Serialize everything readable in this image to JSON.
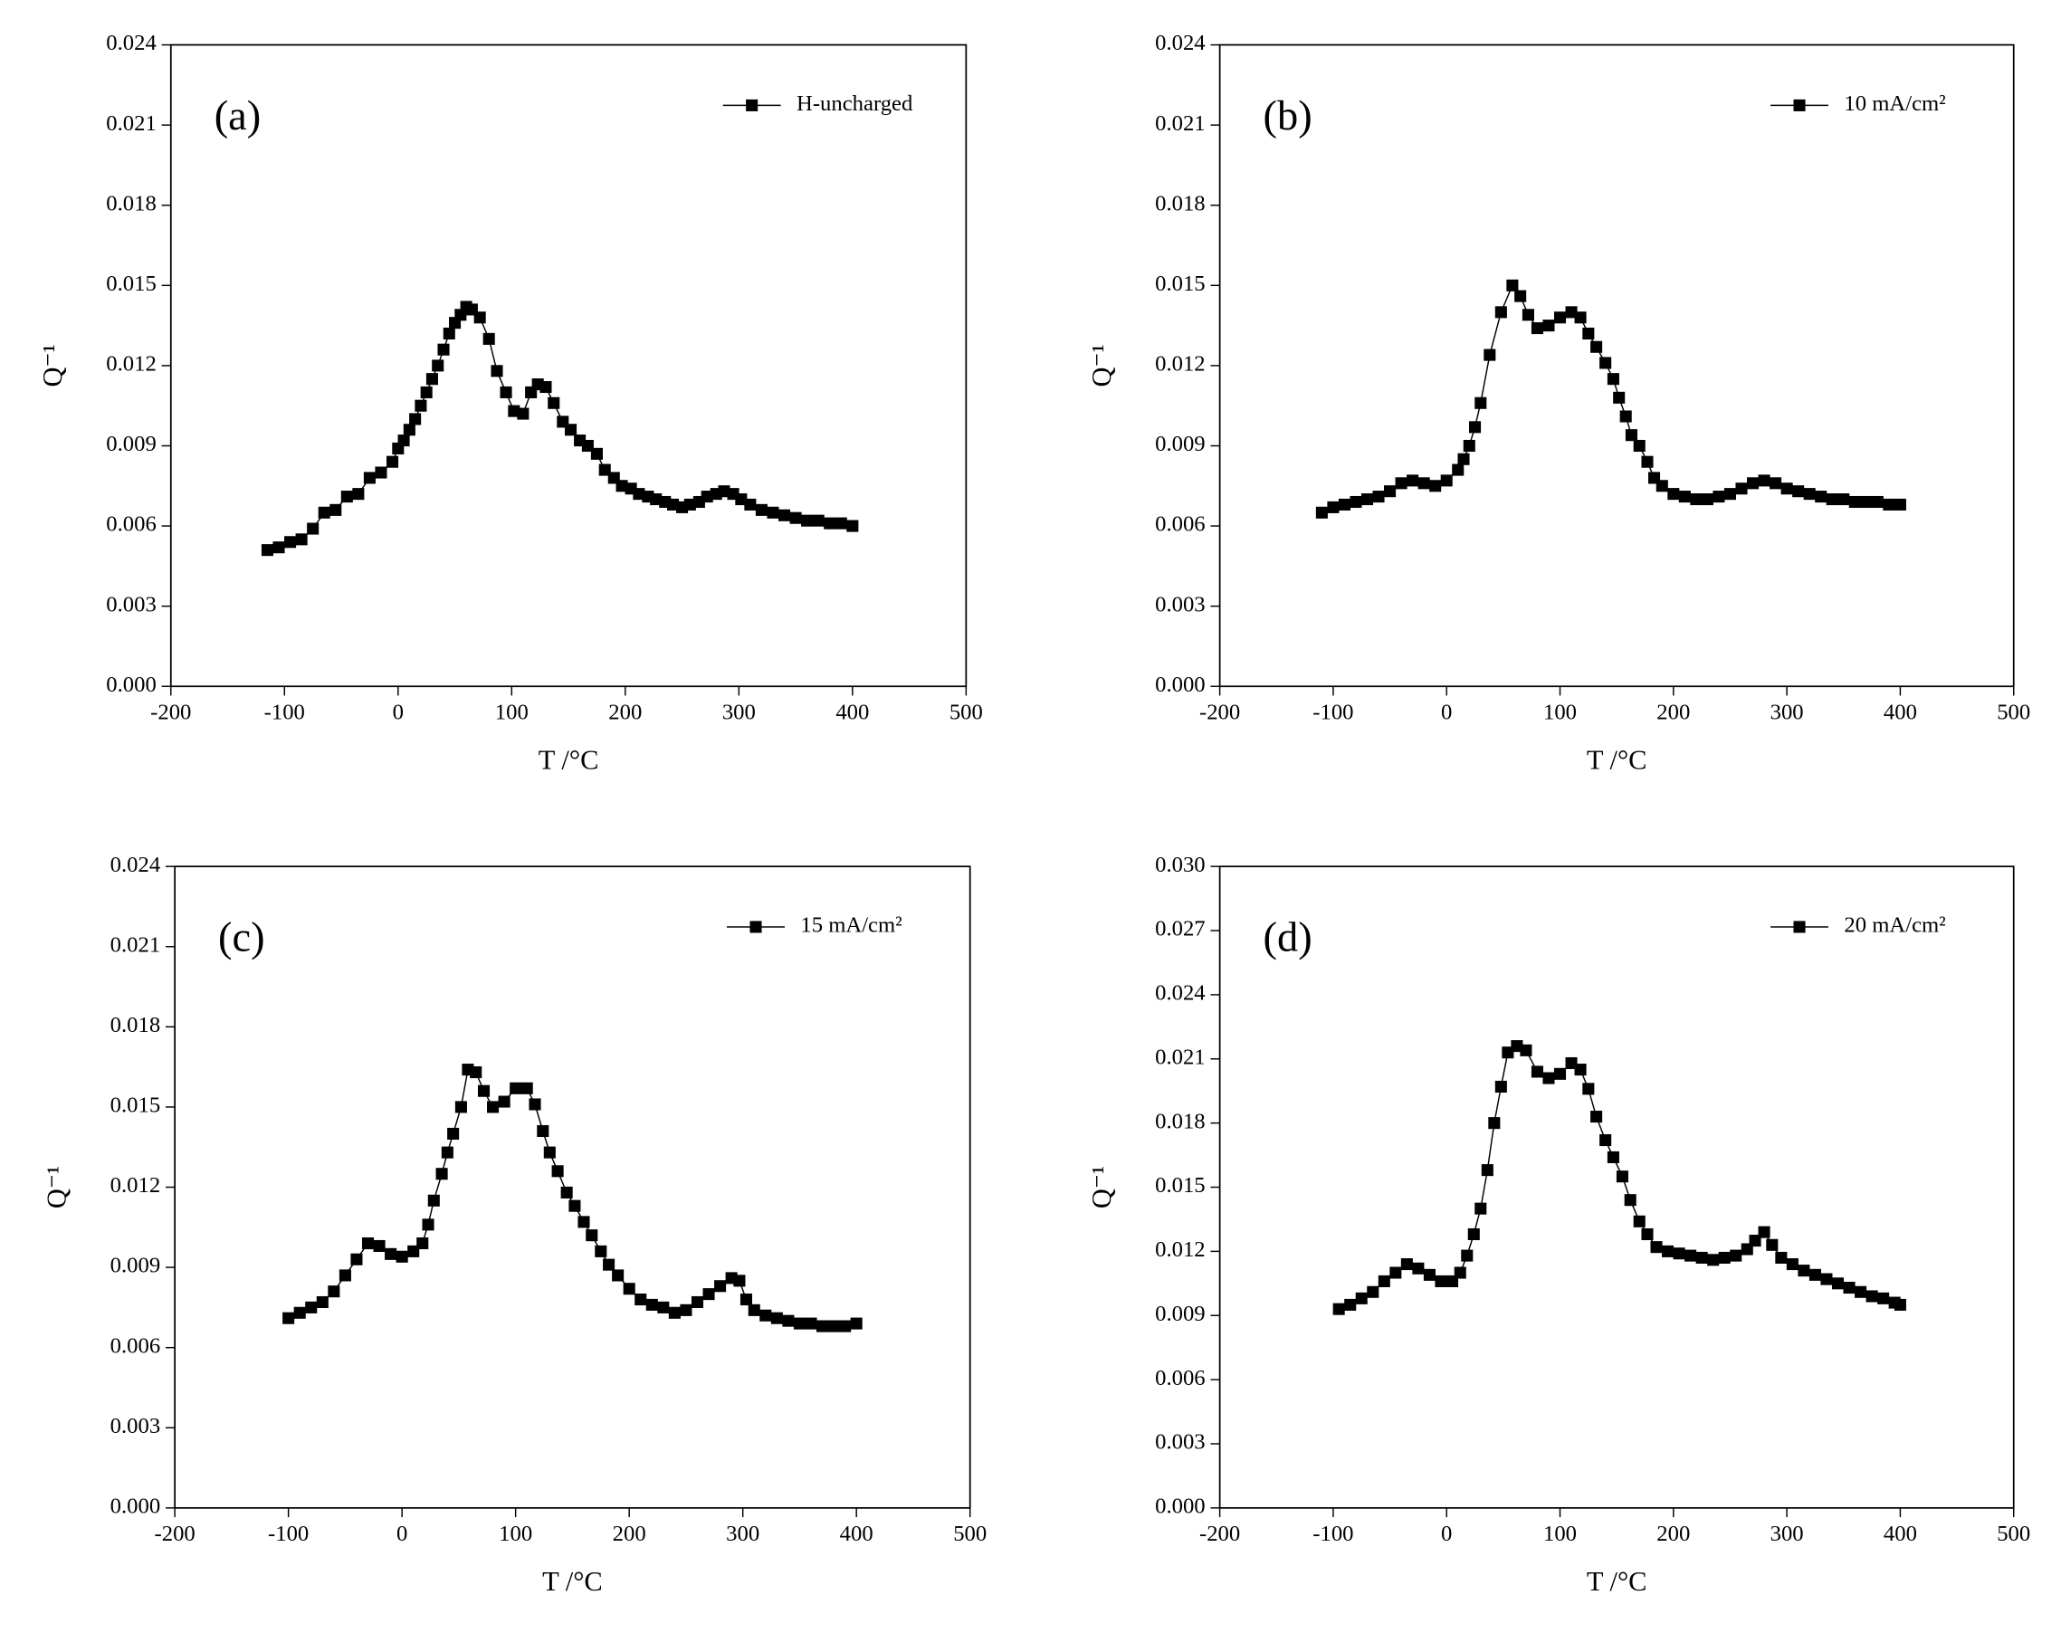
{
  "chart_data": [
    {
      "type": "line",
      "panel_label": "(a)",
      "xlabel": "T /°C",
      "ylabel": "Q⁻¹",
      "xlim": [
        -200,
        500
      ],
      "ylim": [
        0,
        0.024
      ],
      "xticks": [
        -200,
        -100,
        0,
        100,
        200,
        300,
        400,
        500
      ],
      "yticks": [
        {
          "value": 0,
          "label": "0.000"
        },
        {
          "value": 0.003,
          "label": "0.003"
        },
        {
          "value": 0.006,
          "label": "0.006"
        },
        {
          "value": 0.009,
          "label": "0.009"
        },
        {
          "value": 0.012,
          "label": "0.012"
        },
        {
          "value": 0.015,
          "label": "0.015"
        },
        {
          "value": 0.018,
          "label": "0.018"
        },
        {
          "value": 0.021,
          "label": "0.021"
        },
        {
          "value": 0.024,
          "label": "0.024"
        }
      ],
      "marker": "square",
      "legend": "upper right",
      "x": [
        -115,
        -105,
        -95,
        -85,
        -75,
        -65,
        -55,
        -45,
        -35,
        -25,
        -15,
        -5,
        0,
        5,
        10,
        15,
        20,
        25,
        30,
        35,
        40,
        45,
        50,
        55,
        60,
        65,
        72,
        80,
        87,
        95,
        102,
        110,
        117,
        123,
        130,
        137,
        145,
        152,
        160,
        167,
        175,
        182,
        190,
        197,
        205,
        212,
        220,
        227,
        235,
        242,
        250,
        257,
        265,
        272,
        280,
        287,
        295,
        302,
        310,
        320,
        330,
        340,
        350,
        360,
        370,
        380,
        390,
        400
      ],
      "series": [
        {
          "name": "H-uncharged",
          "color": "#000000",
          "values": [
            0.0051,
            0.0052,
            0.0054,
            0.0055,
            0.0059,
            0.0065,
            0.0066,
            0.0071,
            0.0072,
            0.0078,
            0.008,
            0.0084,
            0.0089,
            0.0092,
            0.0096,
            0.01,
            0.0105,
            0.011,
            0.0115,
            0.012,
            0.0126,
            0.0132,
            0.0136,
            0.0139,
            0.0142,
            0.0141,
            0.0138,
            0.013,
            0.0118,
            0.011,
            0.0103,
            0.0102,
            0.011,
            0.0113,
            0.0112,
            0.0106,
            0.0099,
            0.0096,
            0.0092,
            0.009,
            0.0087,
            0.0081,
            0.0078,
            0.0075,
            0.0074,
            0.0072,
            0.0071,
            0.007,
            0.0069,
            0.0068,
            0.0067,
            0.0068,
            0.0069,
            0.0071,
            0.0072,
            0.0073,
            0.0072,
            0.007,
            0.0068,
            0.0066,
            0.0065,
            0.0064,
            0.0063,
            0.0062,
            0.0062,
            0.0061,
            0.0061,
            0.006
          ]
        }
      ]
    },
    {
      "type": "line",
      "panel_label": "(b)",
      "xlabel": "T /°C",
      "ylabel": "Q⁻¹",
      "xlim": [
        -200,
        500
      ],
      "ylim": [
        0,
        0.024
      ],
      "xticks": [
        -200,
        -100,
        0,
        100,
        200,
        300,
        400,
        500
      ],
      "yticks": [
        {
          "value": 0,
          "label": "0.000"
        },
        {
          "value": 0.003,
          "label": "0.003"
        },
        {
          "value": 0.006,
          "label": "0.006"
        },
        {
          "value": 0.009,
          "label": "0.009"
        },
        {
          "value": 0.012,
          "label": "0.012"
        },
        {
          "value": 0.015,
          "label": "0.015"
        },
        {
          "value": 0.018,
          "label": "0.018"
        },
        {
          "value": 0.021,
          "label": "0.021"
        },
        {
          "value": 0.024,
          "label": "0.024"
        }
      ],
      "marker": "square",
      "legend": "upper right",
      "x": [
        -110,
        -100,
        -90,
        -80,
        -70,
        -60,
        -50,
        -40,
        -30,
        -20,
        -10,
        0,
        10,
        15,
        20,
        25,
        30,
        38,
        48,
        58,
        65,
        72,
        80,
        90,
        100,
        110,
        118,
        125,
        132,
        140,
        147,
        152,
        158,
        163,
        170,
        177,
        183,
        190,
        200,
        210,
        220,
        230,
        240,
        250,
        260,
        270,
        280,
        290,
        300,
        310,
        320,
        330,
        340,
        350,
        360,
        370,
        380,
        390,
        400
      ],
      "series": [
        {
          "name": "10 mA/cm²",
          "color": "#000000",
          "values": [
            0.0065,
            0.0067,
            0.0068,
            0.0069,
            0.007,
            0.0071,
            0.0073,
            0.0076,
            0.0077,
            0.0076,
            0.0075,
            0.0077,
            0.0081,
            0.0085,
            0.009,
            0.0097,
            0.0106,
            0.0124,
            0.014,
            0.015,
            0.0146,
            0.0139,
            0.0134,
            0.0135,
            0.0138,
            0.014,
            0.0138,
            0.0132,
            0.0127,
            0.0121,
            0.0115,
            0.0108,
            0.0101,
            0.0094,
            0.009,
            0.0084,
            0.0078,
            0.0075,
            0.0072,
            0.0071,
            0.007,
            0.007,
            0.0071,
            0.0072,
            0.0074,
            0.0076,
            0.0077,
            0.0076,
            0.0074,
            0.0073,
            0.0072,
            0.0071,
            0.007,
            0.007,
            0.0069,
            0.0069,
            0.0069,
            0.0068,
            0.0068
          ]
        }
      ]
    },
    {
      "type": "line",
      "panel_label": "(c)",
      "xlabel": "T /°C",
      "ylabel": "Q⁻¹",
      "xlim": [
        -200,
        500
      ],
      "ylim": [
        0,
        0.024
      ],
      "xticks": [
        -200,
        -100,
        0,
        100,
        200,
        300,
        400,
        500
      ],
      "yticks": [
        {
          "value": 0,
          "label": "0.000"
        },
        {
          "value": 0.003,
          "label": "0.003"
        },
        {
          "value": 0.006,
          "label": "0.006"
        },
        {
          "value": 0.009,
          "label": "0.009"
        },
        {
          "value": 0.012,
          "label": "0.012"
        },
        {
          "value": 0.015,
          "label": "0.015"
        },
        {
          "value": 0.018,
          "label": "0.018"
        },
        {
          "value": 0.021,
          "label": "0.021"
        },
        {
          "value": 0.024,
          "label": "0.024"
        }
      ],
      "marker": "square",
      "legend": "upper right",
      "x": [
        -100,
        -90,
        -80,
        -70,
        -60,
        -50,
        -40,
        -30,
        -20,
        -10,
        0,
        10,
        18,
        23,
        28,
        35,
        40,
        45,
        52,
        58,
        65,
        72,
        80,
        90,
        100,
        110,
        117,
        124,
        130,
        137,
        145,
        152,
        160,
        167,
        175,
        182,
        190,
        200,
        210,
        220,
        230,
        240,
        250,
        260,
        270,
        280,
        290,
        297,
        303,
        310,
        320,
        330,
        340,
        350,
        360,
        370,
        380,
        390,
        400
      ],
      "series": [
        {
          "name": "15 mA/cm²",
          "color": "#000000",
          "values": [
            0.0071,
            0.0073,
            0.0075,
            0.0077,
            0.0081,
            0.0087,
            0.0093,
            0.0099,
            0.0098,
            0.0095,
            0.0094,
            0.0096,
            0.0099,
            0.0106,
            0.0115,
            0.0125,
            0.0133,
            0.014,
            0.015,
            0.0164,
            0.0163,
            0.0156,
            0.015,
            0.0152,
            0.0157,
            0.0157,
            0.0151,
            0.0141,
            0.0133,
            0.0126,
            0.0118,
            0.0113,
            0.0107,
            0.0102,
            0.0096,
            0.0091,
            0.0087,
            0.0082,
            0.0078,
            0.0076,
            0.0075,
            0.0073,
            0.0074,
            0.0077,
            0.008,
            0.0083,
            0.0086,
            0.0085,
            0.0078,
            0.0074,
            0.0072,
            0.0071,
            0.007,
            0.0069,
            0.0069,
            0.0068,
            0.0068,
            0.0068,
            0.0069
          ]
        }
      ]
    },
    {
      "type": "line",
      "panel_label": "(d)",
      "xlabel": "T /°C",
      "ylabel": "Q⁻¹",
      "xlim": [
        -200,
        500
      ],
      "ylim": [
        0,
        0.03
      ],
      "xticks": [
        -200,
        -100,
        0,
        100,
        200,
        300,
        400,
        500
      ],
      "yticks": [
        {
          "value": 0,
          "label": "0.000"
        },
        {
          "value": 0.003,
          "label": "0.003"
        },
        {
          "value": 0.006,
          "label": "0.006"
        },
        {
          "value": 0.009,
          "label": "0.009"
        },
        {
          "value": 0.012,
          "label": "0.012"
        },
        {
          "value": 0.015,
          "label": "0.015"
        },
        {
          "value": 0.018,
          "label": "0.018"
        },
        {
          "value": 0.021,
          "label": "0.021"
        },
        {
          "value": 0.024,
          "label": "0.024"
        },
        {
          "value": 0.027,
          "label": "0.027"
        },
        {
          "value": 0.03,
          "label": "0.030"
        }
      ],
      "marker": "square",
      "legend": "upper right",
      "x": [
        -95,
        -85,
        -75,
        -65,
        -55,
        -45,
        -35,
        -25,
        -15,
        -5,
        5,
        12,
        18,
        24,
        30,
        36,
        42,
        48,
        54,
        62,
        70,
        80,
        90,
        100,
        110,
        118,
        125,
        132,
        140,
        147,
        155,
        162,
        170,
        177,
        185,
        195,
        205,
        215,
        225,
        235,
        245,
        255,
        265,
        272,
        280,
        287,
        295,
        305,
        315,
        325,
        335,
        345,
        355,
        365,
        375,
        385,
        395,
        400
      ],
      "series": [
        {
          "name": "20 mA/cm²",
          "color": "#000000",
          "values": [
            0.0093,
            0.0095,
            0.0098,
            0.0101,
            0.0106,
            0.011,
            0.0114,
            0.0112,
            0.0109,
            0.0106,
            0.0106,
            0.011,
            0.0118,
            0.0128,
            0.014,
            0.0158,
            0.018,
            0.0197,
            0.0213,
            0.0216,
            0.0214,
            0.0204,
            0.0201,
            0.0203,
            0.0208,
            0.0205,
            0.0196,
            0.0183,
            0.0172,
            0.0164,
            0.0155,
            0.0144,
            0.0134,
            0.0128,
            0.0122,
            0.012,
            0.0119,
            0.0118,
            0.0117,
            0.0116,
            0.0117,
            0.0118,
            0.0121,
            0.0125,
            0.0129,
            0.0123,
            0.0117,
            0.0114,
            0.0111,
            0.0109,
            0.0107,
            0.0105,
            0.0103,
            0.0101,
            0.0099,
            0.0098,
            0.0096,
            0.0095
          ]
        }
      ]
    }
  ]
}
